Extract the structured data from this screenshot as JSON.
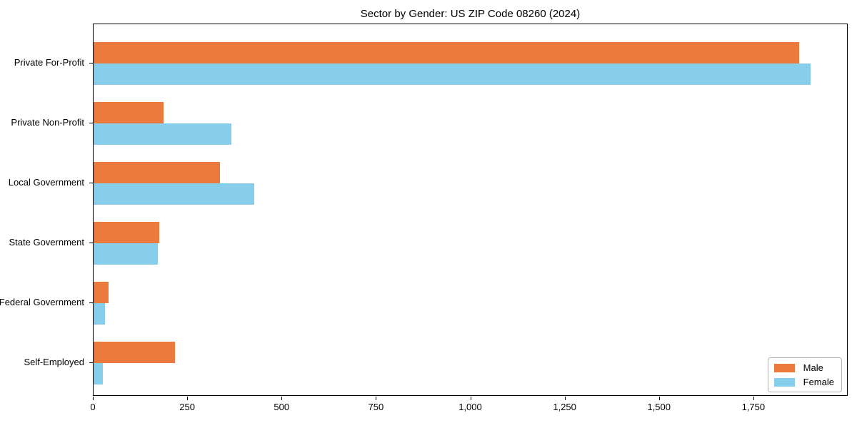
{
  "chart_data": {
    "type": "bar",
    "orientation": "horizontal",
    "title": "Sector by Gender: US ZIP Code 08260 (2024)",
    "xlabel": "",
    "ylabel": "",
    "categories": [
      "Private For-Profit",
      "Private Non-Profit",
      "Local Government",
      "State Government",
      "Federal Government",
      "Self-Employed"
    ],
    "series": [
      {
        "name": "Male",
        "color": "#EC7A3C",
        "values": [
          1870,
          185,
          335,
          175,
          40,
          215
        ]
      },
      {
        "name": "Female",
        "color": "#87CEEB",
        "values": [
          1900,
          365,
          425,
          170,
          30,
          25
        ]
      }
    ],
    "xlim": [
      0,
      2000
    ],
    "xticks": [
      0,
      250,
      500,
      750,
      1000,
      1250,
      1500,
      1750
    ],
    "xtick_labels": [
      "0",
      "250",
      "500",
      "750",
      "1,000",
      "1,250",
      "1,500",
      "1,750"
    ],
    "grid": false,
    "legend_position": "lower right",
    "background_color": "#ffffff",
    "spine_color": "#000000"
  }
}
